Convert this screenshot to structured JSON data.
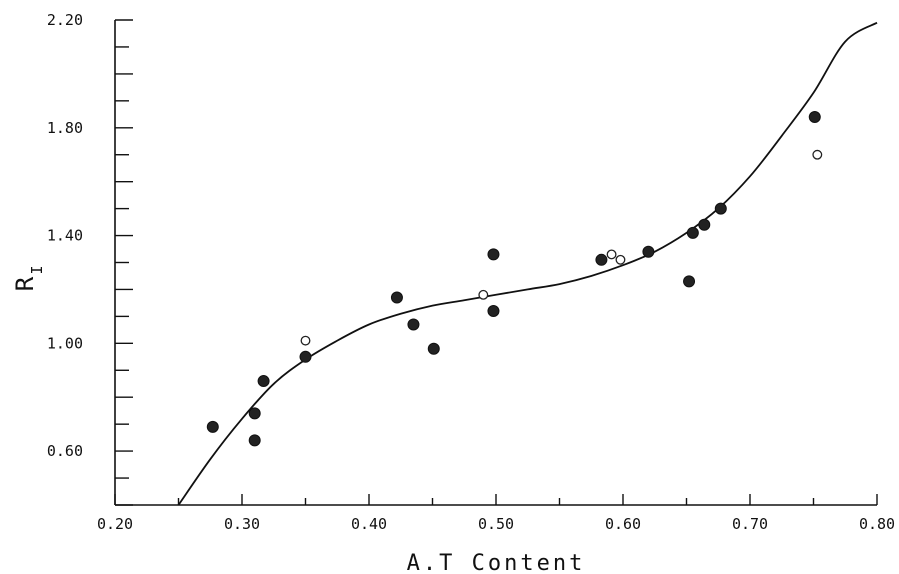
{
  "chart_data": {
    "type": "scatter",
    "xlabel": "A.T Content",
    "ylabel_main": "R",
    "ylabel_sub": "I",
    "xlim": [
      0.2,
      0.8
    ],
    "ylim": [
      0.4,
      2.2
    ],
    "x_ticks": [
      "0.20",
      "0.30",
      "0.40",
      "0.50",
      "0.60",
      "0.70",
      "0.80"
    ],
    "y_ticks": [
      "0.60",
      "1.00",
      "1.40",
      "1.80",
      "2.20"
    ],
    "grid": false,
    "series": [
      {
        "marker": "filled-circle",
        "points": [
          [
            0.277,
            0.69
          ],
          [
            0.31,
            0.74
          ],
          [
            0.31,
            0.64
          ],
          [
            0.317,
            0.86
          ],
          [
            0.35,
            0.95
          ],
          [
            0.422,
            1.17
          ],
          [
            0.435,
            1.07
          ],
          [
            0.451,
            0.98
          ],
          [
            0.498,
            1.33
          ],
          [
            0.498,
            1.12
          ],
          [
            0.583,
            1.31
          ],
          [
            0.62,
            1.34
          ],
          [
            0.652,
            1.23
          ],
          [
            0.655,
            1.41
          ],
          [
            0.664,
            1.44
          ],
          [
            0.677,
            1.5
          ],
          [
            0.751,
            1.84
          ]
        ]
      },
      {
        "marker": "open-circle",
        "points": [
          [
            0.35,
            1.01
          ],
          [
            0.49,
            1.18
          ],
          [
            0.591,
            1.33
          ],
          [
            0.598,
            1.31
          ],
          [
            0.753,
            1.7
          ]
        ]
      }
    ],
    "fit_curve": {
      "style": "solid",
      "points": [
        [
          0.25,
          0.4
        ],
        [
          0.275,
          0.57
        ],
        [
          0.3,
          0.72
        ],
        [
          0.325,
          0.85
        ],
        [
          0.35,
          0.94
        ],
        [
          0.375,
          1.01
        ],
        [
          0.4,
          1.07
        ],
        [
          0.425,
          1.11
        ],
        [
          0.45,
          1.14
        ],
        [
          0.475,
          1.16
        ],
        [
          0.5,
          1.18
        ],
        [
          0.525,
          1.2
        ],
        [
          0.55,
          1.22
        ],
        [
          0.575,
          1.25
        ],
        [
          0.6,
          1.29
        ],
        [
          0.625,
          1.34
        ],
        [
          0.65,
          1.41
        ],
        [
          0.675,
          1.5
        ],
        [
          0.7,
          1.62
        ],
        [
          0.725,
          1.77
        ],
        [
          0.75,
          1.93
        ],
        [
          0.775,
          2.12
        ],
        [
          0.8,
          2.19
        ]
      ]
    }
  }
}
